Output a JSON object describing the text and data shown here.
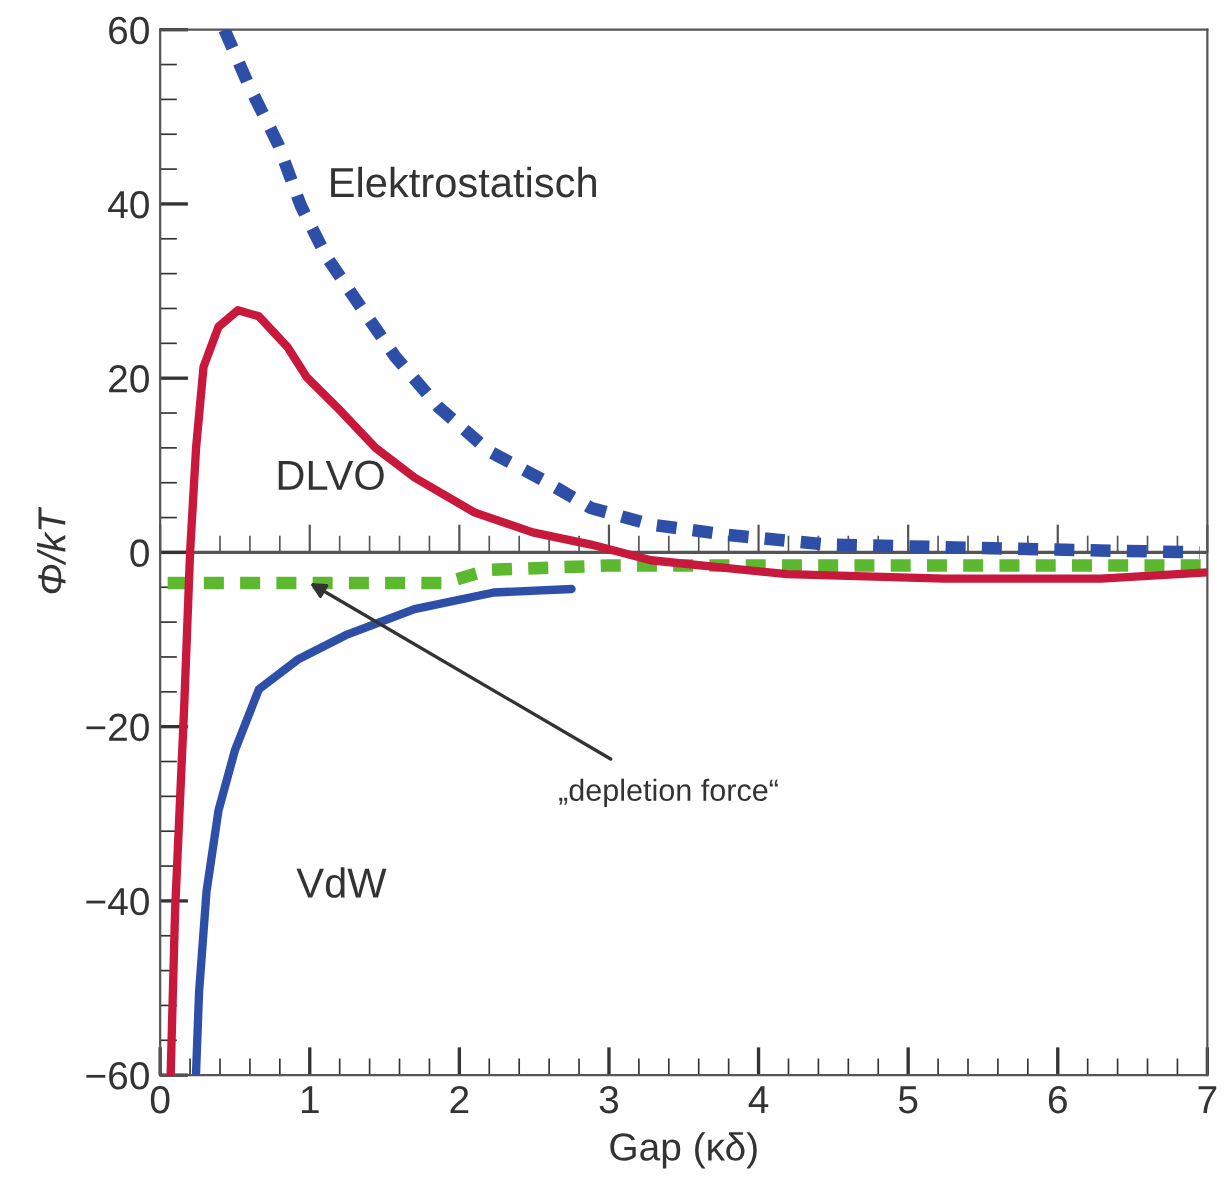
{
  "chart_data": {
    "type": "line",
    "xlabel": "Gap (κδ)",
    "ylabel": "Φ/kT",
    "xlim": [
      0,
      7
    ],
    "ylim": [
      -60,
      60
    ],
    "xticks": [
      0,
      1,
      2,
      3,
      4,
      5,
      6,
      7
    ],
    "yticks": [
      -60,
      -40,
      -20,
      0,
      20,
      40,
      60
    ],
    "grid": false,
    "series": [
      {
        "name": "Elektrostatisch",
        "color": "#2e4fa8",
        "line_style": "dashed",
        "x": [
          0.43,
          0.59,
          0.79,
          0.94,
          1.11,
          1.34,
          1.57,
          1.86,
          2.2,
          2.56,
          2.88,
          3.28,
          3.8,
          4.46,
          5.5,
          6.95
        ],
        "values": [
          60,
          53.7,
          46.8,
          39.8,
          34,
          28.2,
          22.5,
          16.7,
          11.6,
          8.3,
          5.1,
          3.2,
          2,
          0.9,
          0.5,
          0
        ]
      },
      {
        "name": "DLVO",
        "color": "#c8193c",
        "line_style": "solid",
        "x": [
          0.07,
          0.1,
          0.16,
          0.2,
          0.24,
          0.29,
          0.39,
          0.52,
          0.66,
          0.85,
          0.98,
          1.18,
          1.44,
          1.7,
          2.1,
          2.49,
          2.88,
          3.28,
          4.19,
          5.24,
          6.29,
          7
        ],
        "values": [
          -60,
          -41,
          -18,
          0,
          12,
          21.3,
          25.9,
          27.8,
          27.1,
          23.6,
          20.1,
          16.7,
          12,
          8.6,
          4.6,
          2.3,
          0.9,
          -0.9,
          -2.5,
          -3,
          -3,
          -2.3
        ]
      },
      {
        "name": "VdW",
        "color": "#2e4fa8",
        "line_style": "solid",
        "x": [
          0.24,
          0.26,
          0.31,
          0.39,
          0.5,
          0.66,
          0.92,
          1.24,
          1.7,
          2.23,
          2.75
        ],
        "values": [
          -59.7,
          -50.5,
          -38.9,
          -29.6,
          -22.7,
          -15.7,
          -12.3,
          -9.5,
          -6.5,
          -4.6,
          -4.2
        ]
      },
      {
        "color": "#5cb82e",
        "line_style": "dashed",
        "x": [
          0.05,
          1.9,
          2.2,
          3,
          7
        ],
        "values": [
          -3.5,
          -3.5,
          -2,
          -1.5,
          -1.5
        ]
      }
    ],
    "ref_lines": [
      {
        "axis": "y",
        "value": 0,
        "color": "#555555"
      }
    ],
    "annotations": [
      {
        "text": "„depletion force“",
        "x": 1.0,
        "y": -3.5
      }
    ]
  }
}
